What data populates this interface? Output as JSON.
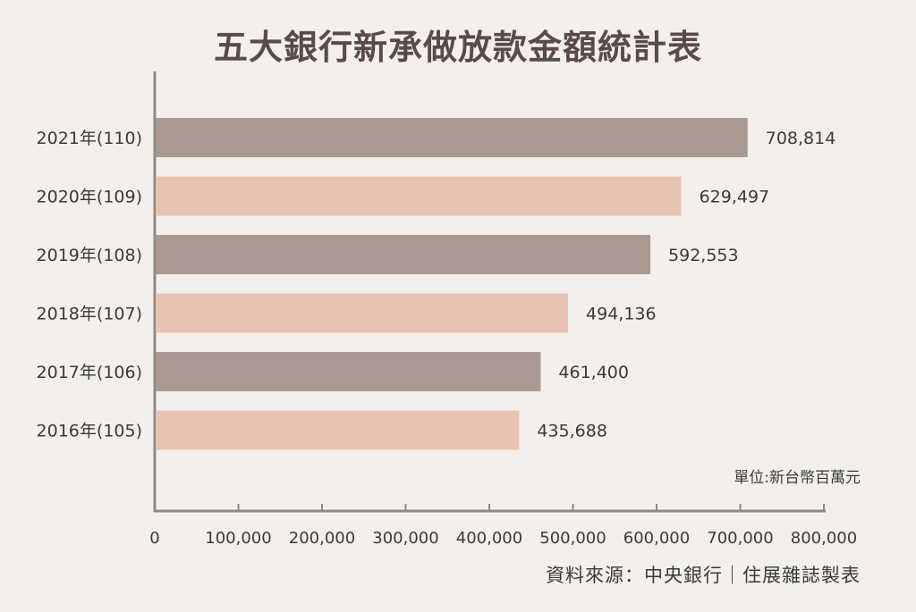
{
  "chart_data": {
    "type": "bar",
    "orientation": "horizontal",
    "title": "五大銀行新承做放款金額統計表",
    "unit_label": "單位:新台幣百萬元",
    "source": "資料來源：中央銀行｜住展雜誌製表",
    "categories": [
      "2021年(110)",
      "2020年(109)",
      "2019年(108)",
      "2018年(107)",
      "2017年(106)",
      "2016年(105)"
    ],
    "values": [
      708814,
      629497,
      592553,
      494136,
      461400,
      435688
    ],
    "value_labels": [
      "708,814",
      "629,497",
      "592,553",
      "494,136",
      "461,400",
      "435,688"
    ],
    "xlim": [
      0,
      800000
    ],
    "x_ticks": [
      0,
      100000,
      200000,
      300000,
      400000,
      500000,
      600000,
      700000,
      800000
    ],
    "x_tick_labels": [
      "0",
      "100,000",
      "200,000",
      "300,000",
      "400,000",
      "500,000",
      "600,000",
      "700,000",
      "800,000"
    ],
    "colors": [
      "#a89a90",
      "#e8c3b2"
    ],
    "background": "#f3f0eb",
    "grid": false,
    "legend": "none"
  }
}
